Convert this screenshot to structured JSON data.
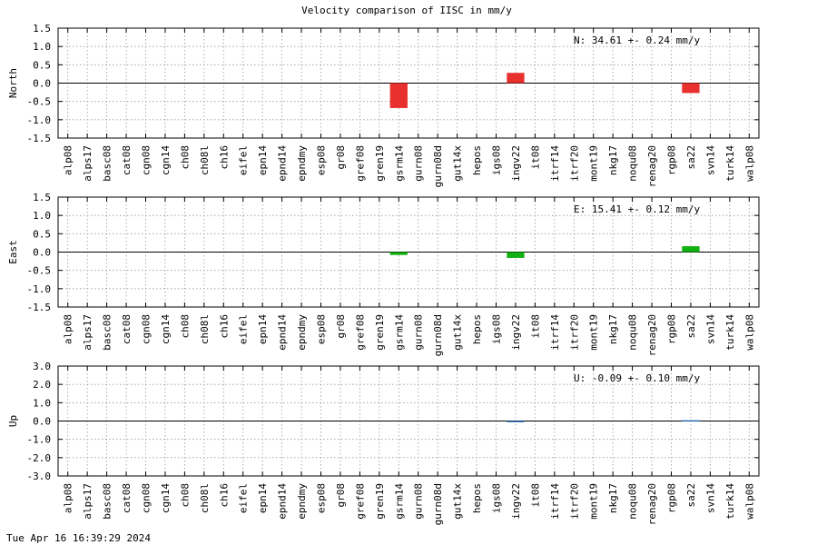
{
  "title": "Velocity comparison of IISC in mm/y",
  "timestamp": "Tue Apr 16 16:39:29 2024",
  "chart_data": [
    {
      "type": "bar",
      "ylabel": "North",
      "annotation": "N:  34.61 +-  0.24 mm/y",
      "color": "#e8302e",
      "ylim": [
        -1.5,
        1.5
      ],
      "yticks": [
        "1.5",
        "1.0",
        "0.5",
        "0.0",
        "-0.5",
        "-1.0",
        "-1.5"
      ],
      "categories": [
        "alp08",
        "alps17",
        "basc08",
        "cat08",
        "cgn08",
        "cgn14",
        "ch08",
        "ch08l",
        "ch16",
        "eifel",
        "epn14",
        "epnd14",
        "epndmy",
        "esp08",
        "gr08",
        "gref08",
        "gren19",
        "gsrm14",
        "gurn08",
        "gurn08d",
        "gut14x",
        "hepos",
        "igs08",
        "ingv22",
        "it08",
        "itrf14",
        "itrf20",
        "mont19",
        "nkg17",
        "noqu08",
        "renag20",
        "rgp08",
        "sa22",
        "svn14",
        "turk14",
        "walp08"
      ],
      "values": [
        null,
        null,
        null,
        null,
        null,
        null,
        null,
        null,
        null,
        null,
        null,
        null,
        null,
        null,
        null,
        null,
        null,
        -0.68,
        null,
        null,
        null,
        null,
        null,
        0.28,
        null,
        null,
        null,
        null,
        null,
        null,
        null,
        null,
        -0.27,
        null,
        null,
        null
      ],
      "grid": true
    },
    {
      "type": "bar",
      "ylabel": "East",
      "annotation": "E:  15.41 +-  0.12 mm/y",
      "color": "#11b111",
      "ylim": [
        -1.5,
        1.5
      ],
      "yticks": [
        "1.5",
        "1.0",
        "0.5",
        "0.0",
        "-0.5",
        "-1.0",
        "-1.5"
      ],
      "categories": [
        "alp08",
        "alps17",
        "basc08",
        "cat08",
        "cgn08",
        "cgn14",
        "ch08",
        "ch08l",
        "ch16",
        "eifel",
        "epn14",
        "epnd14",
        "epndmy",
        "esp08",
        "gr08",
        "gref08",
        "gren19",
        "gsrm14",
        "gurn08",
        "gurn08d",
        "gut14x",
        "hepos",
        "igs08",
        "ingv22",
        "it08",
        "itrf14",
        "itrf20",
        "mont19",
        "nkg17",
        "noqu08",
        "renag20",
        "rgp08",
        "sa22",
        "svn14",
        "turk14",
        "walp08"
      ],
      "values": [
        null,
        null,
        null,
        null,
        null,
        null,
        null,
        null,
        null,
        null,
        null,
        null,
        null,
        null,
        null,
        null,
        null,
        -0.08,
        null,
        null,
        null,
        null,
        null,
        -0.16,
        null,
        null,
        null,
        null,
        null,
        null,
        null,
        null,
        0.16,
        null,
        null,
        null
      ],
      "grid": true
    },
    {
      "type": "bar",
      "ylabel": "Up",
      "annotation": "U:  -0.09 +-  0.10 mm/y",
      "color": "#1060b8",
      "ylim": [
        -3.0,
        3.0
      ],
      "yticks": [
        "3.0",
        "2.0",
        "1.0",
        "0.0",
        "-1.0",
        "-2.0",
        "-3.0"
      ],
      "categories": [
        "alp08",
        "alps17",
        "basc08",
        "cat08",
        "cgn08",
        "cgn14",
        "ch08",
        "ch08l",
        "ch16",
        "eifel",
        "epn14",
        "epnd14",
        "epndmy",
        "esp08",
        "gr08",
        "gref08",
        "gren19",
        "gsrm14",
        "gurn08",
        "gurn08d",
        "gut14x",
        "hepos",
        "igs08",
        "ingv22",
        "it08",
        "itrf14",
        "itrf20",
        "mont19",
        "nkg17",
        "noqu08",
        "renag20",
        "rgp08",
        "sa22",
        "svn14",
        "turk14",
        "walp08"
      ],
      "values": [
        null,
        null,
        null,
        null,
        null,
        null,
        null,
        null,
        null,
        null,
        null,
        null,
        null,
        null,
        null,
        null,
        null,
        null,
        null,
        null,
        null,
        null,
        null,
        -0.05,
        null,
        null,
        null,
        null,
        null,
        null,
        null,
        null,
        0.04,
        null,
        null,
        null
      ],
      "grid": true
    }
  ]
}
